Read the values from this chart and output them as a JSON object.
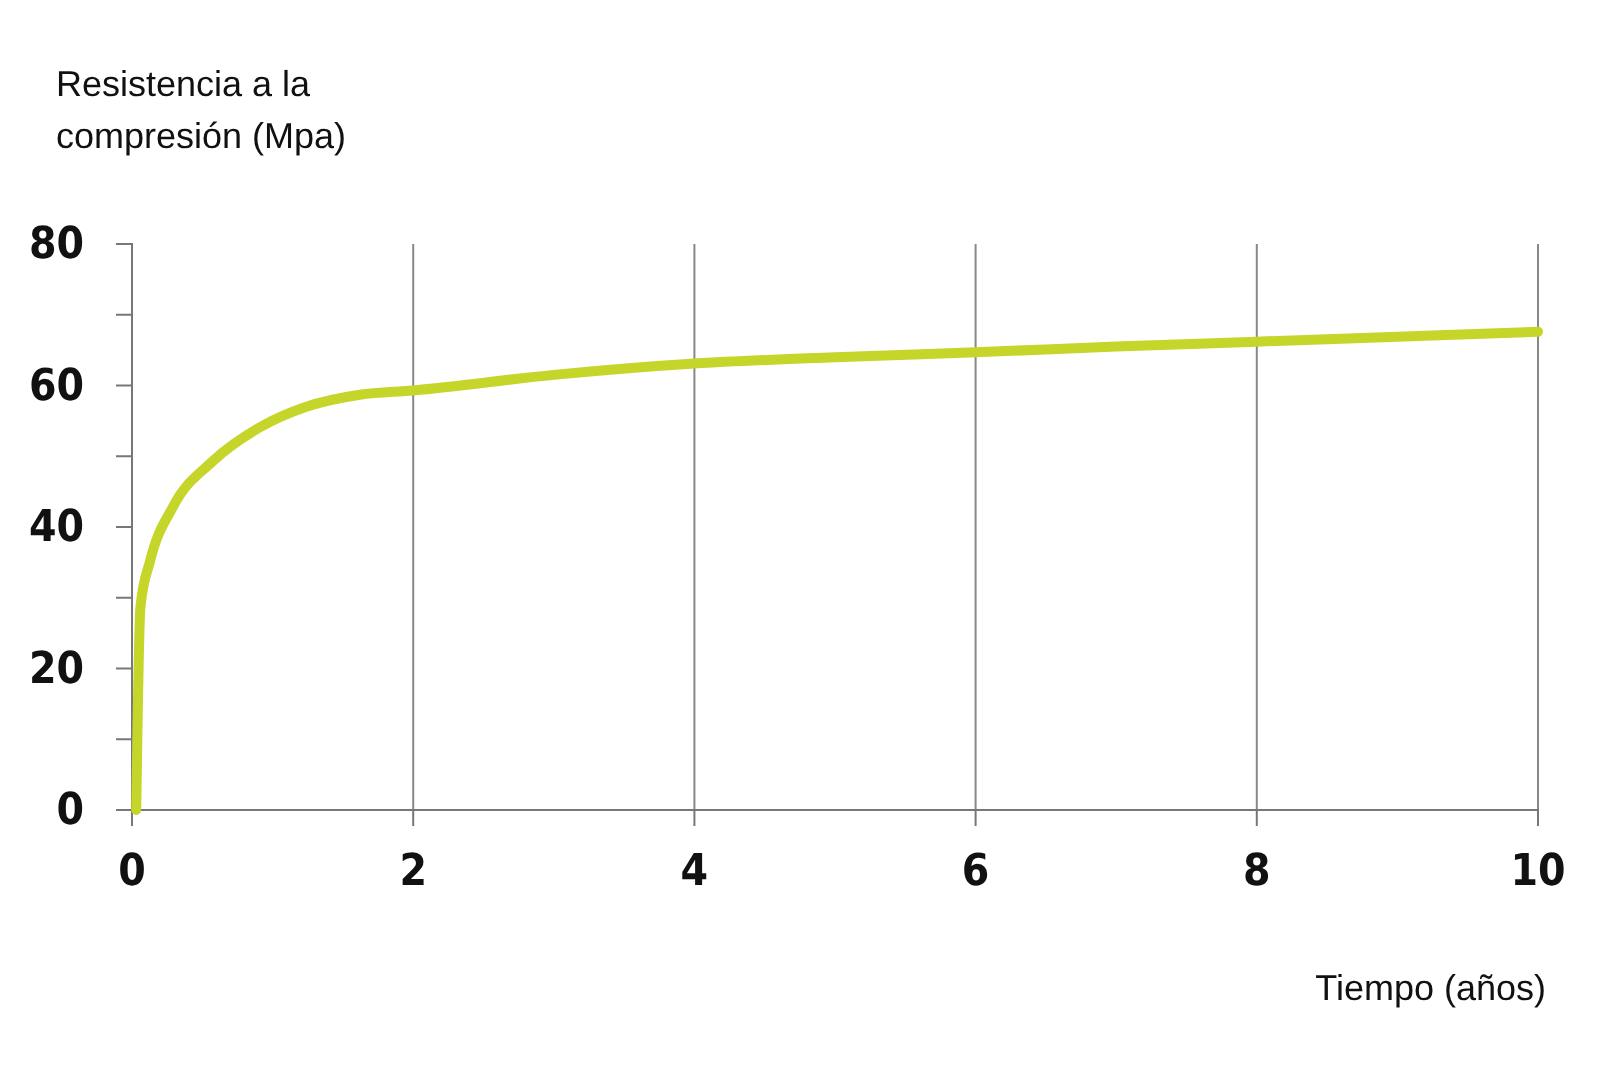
{
  "chart_data": {
    "type": "line",
    "ylabel": "Resistencia a la compresión (Mpa)",
    "xlabel": "Tiempo (años)",
    "x": [
      0.03,
      0.06,
      0.13,
      0.29,
      0.58,
      0.91,
      1.24,
      1.62,
      2,
      3,
      4,
      5,
      6,
      7,
      8,
      9,
      10
    ],
    "series": [
      {
        "color": "#c5d52a",
        "values": [
          0,
          28.7,
          35.3,
          42.8,
          49.4,
          54.1,
          57,
          58.7,
          59.3,
          61.5,
          63.1,
          64,
          64.7,
          65.5,
          66.2,
          66.9,
          67.6
        ]
      }
    ],
    "xlim": [
      0,
      10
    ],
    "xticks": [
      0,
      2,
      4,
      6,
      8,
      10
    ],
    "ylim": [
      0,
      80
    ],
    "yticks": [
      0,
      {
        "value": 10,
        "label": null
      },
      20,
      {
        "value": 30,
        "label": null
      },
      40,
      {
        "value": 50,
        "label": null
      },
      60,
      {
        "value": 70,
        "label": null
      },
      80
    ],
    "grid": "x",
    "marker": "none",
    "line_style": "solid"
  }
}
